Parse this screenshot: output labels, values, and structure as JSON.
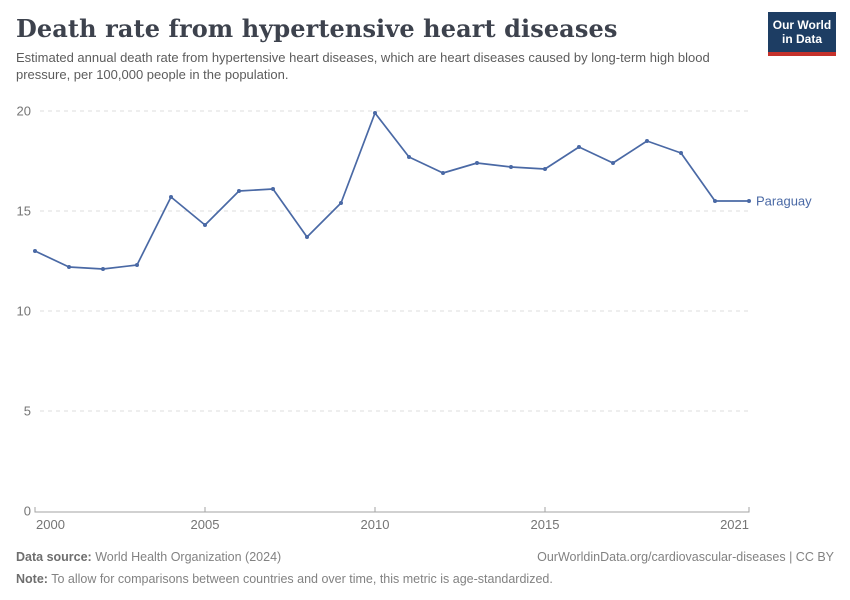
{
  "header": {
    "title": "Death rate from hypertensive heart diseases",
    "subtitle": "Estimated annual death rate from hypertensive heart diseases, which are heart diseases caused by long-term high blood pressure, per 100,000 people in the population.",
    "logo": {
      "line1": "Our World",
      "line2": "in Data",
      "bg_color": "#1d3d63",
      "stripe_color": "#c5312b"
    }
  },
  "chart_data": {
    "type": "line",
    "title": "Death rate from hypertensive heart diseases",
    "xlabel": "",
    "ylabel": "",
    "xlim": [
      2000,
      2021
    ],
    "ylim": [
      0,
      20
    ],
    "xticks": [
      2000,
      2005,
      2010,
      2015,
      2021
    ],
    "yticks": [
      0,
      5,
      10,
      15,
      20
    ],
    "grid": "horizontal-dashed",
    "legend_position": "end-of-line",
    "series": [
      {
        "name": "Paraguay",
        "color": "#4a69a5",
        "x": [
          2000,
          2001,
          2002,
          2003,
          2004,
          2005,
          2006,
          2007,
          2008,
          2009,
          2010,
          2011,
          2012,
          2013,
          2014,
          2015,
          2016,
          2017,
          2018,
          2019,
          2020,
          2021
        ],
        "values": [
          13.0,
          12.2,
          12.1,
          12.3,
          15.7,
          14.3,
          16.0,
          16.1,
          13.7,
          15.4,
          19.9,
          17.7,
          16.9,
          17.4,
          17.2,
          17.1,
          18.2,
          17.4,
          18.5,
          17.9,
          15.5,
          15.5
        ]
      }
    ],
    "colors": {
      "grid": "#dcdcdc",
      "axis": "#a3a3a3",
      "tick_text": "#757575"
    }
  },
  "footer": {
    "datasource_label": "Data source:",
    "datasource_value": " World Health Organization (2024)",
    "attribution": "OurWorldinData.org/cardiovascular-diseases | CC BY",
    "note_label": "Note:",
    "note_value": " To allow for comparisons between countries and over time, this metric is age-standardized."
  }
}
